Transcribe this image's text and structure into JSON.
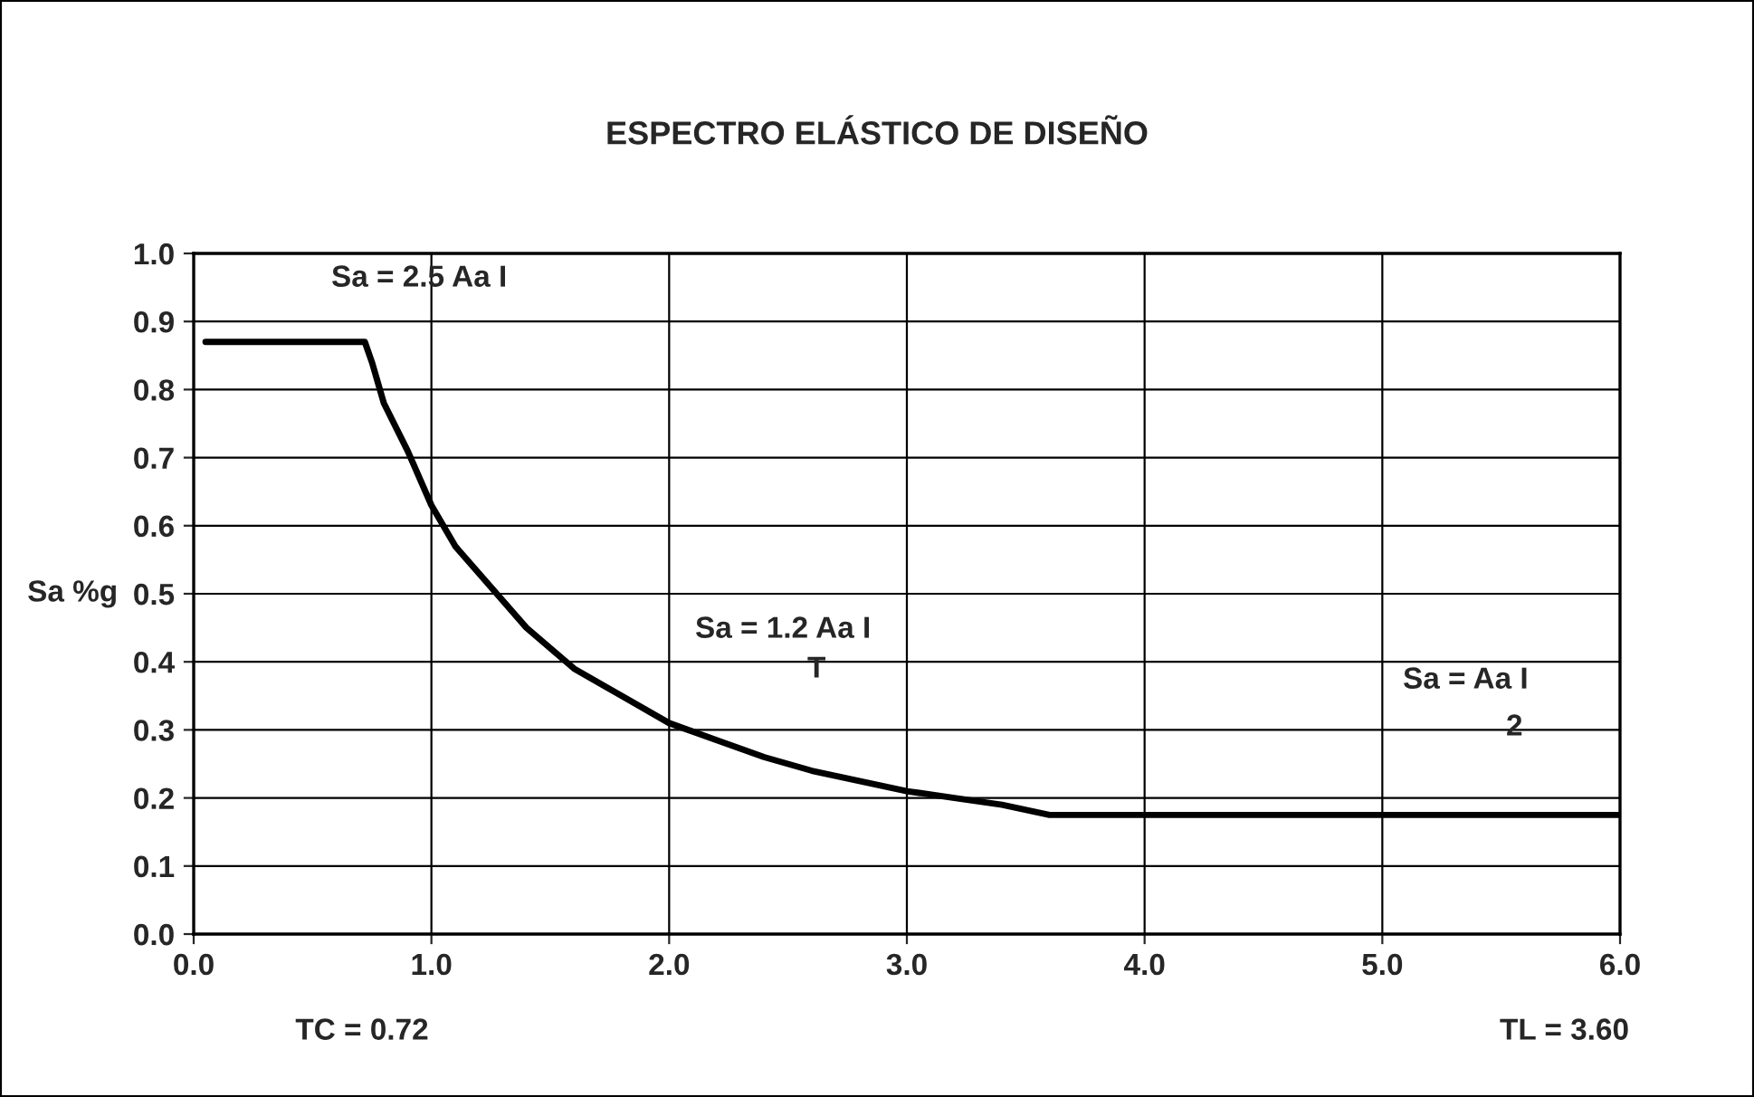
{
  "chart_data": {
    "type": "line",
    "title": "ESPECTRO ELÁSTICO DE DISEÑO",
    "ylabel": "Sa %g",
    "x": [
      0.05,
      0.72,
      0.75,
      0.8,
      0.9,
      1.0,
      1.1,
      1.2,
      1.4,
      1.6,
      1.8,
      2.0,
      2.2,
      2.4,
      2.6,
      2.8,
      3.0,
      3.2,
      3.4,
      3.6,
      6.0
    ],
    "series": [
      {
        "color": "#000000",
        "values": [
          0.87,
          0.87,
          0.84,
          0.78,
          0.71,
          0.63,
          0.57,
          0.53,
          0.45,
          0.39,
          0.35,
          0.31,
          0.285,
          0.26,
          0.24,
          0.225,
          0.21,
          0.2,
          0.19,
          0.175,
          0.175
        ]
      }
    ],
    "xlim": [
      0,
      6
    ],
    "xticks": [
      {
        "value": 0,
        "label": "0.0"
      },
      {
        "value": 1,
        "label": "1.0"
      },
      {
        "value": 2,
        "label": "2.0"
      },
      {
        "value": 3,
        "label": "3.0"
      },
      {
        "value": 4,
        "label": "4.0"
      },
      {
        "value": 5,
        "label": "5.0"
      },
      {
        "value": 6,
        "label": "6.0"
      }
    ],
    "ylim": [
      0,
      1
    ],
    "yticks": [
      {
        "value": 0,
        "label": "0.0"
      },
      {
        "value": 0.1,
        "label": "0.1"
      },
      {
        "value": 0.2,
        "label": "0.2"
      },
      {
        "value": 0.3,
        "label": "0.3"
      },
      {
        "value": 0.4,
        "label": "0.4"
      },
      {
        "value": 0.5,
        "label": "0.5"
      },
      {
        "value": 0.6,
        "label": "0.6"
      },
      {
        "value": 0.7,
        "label": "0.7"
      },
      {
        "value": 0.8,
        "label": "0.8"
      },
      {
        "value": 0.9,
        "label": "0.9"
      },
      {
        "value": 1.0,
        "label": "1.0"
      }
    ],
    "grid": true,
    "line_style": "solid",
    "marker": "none",
    "annotations": [
      "Sa = 2.5 Aa I",
      "Sa = 1.2 Aa I",
      "T",
      "Sa = Aa I",
      "2",
      "TC = 0.72",
      "TL = 3.60"
    ]
  }
}
